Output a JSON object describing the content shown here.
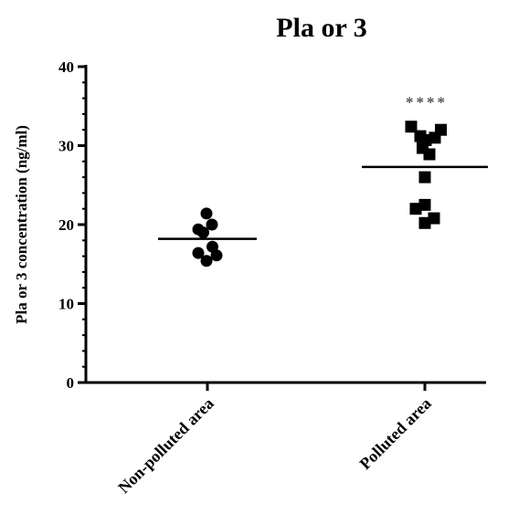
{
  "chart_data": {
    "type": "scatter",
    "title": "Pla or 3",
    "ylabel": "Pla or 3 concentration (ng/ml)",
    "xlabel": "",
    "ylim": [
      0,
      40
    ],
    "yticks": [
      "0",
      "10",
      "20",
      "30",
      "40"
    ],
    "yminor_step": 2,
    "categories": [
      "Non-polluted area",
      "Polluted area"
    ],
    "series": [
      {
        "category": "Non-polluted area",
        "marker": "circle",
        "mean": 18.2,
        "points": [
          {
            "offset": -0.04,
            "y": 21.4
          },
          {
            "offset": -0.4,
            "y": 19.4
          },
          {
            "offset": -0.18,
            "y": 19.0
          },
          {
            "offset": 0.2,
            "y": 20.0
          },
          {
            "offset": -0.4,
            "y": 16.4
          },
          {
            "offset": 0.22,
            "y": 17.2
          },
          {
            "offset": -0.04,
            "y": 15.4
          },
          {
            "offset": 0.4,
            "y": 16.1
          }
        ]
      },
      {
        "category": "Polluted area",
        "marker": "square",
        "mean": 27.3,
        "significance": "****",
        "points": [
          {
            "offset": -0.6,
            "y": 32.4
          },
          {
            "offset": 0.7,
            "y": 32.0
          },
          {
            "offset": -0.2,
            "y": 31.2
          },
          {
            "offset": 0.04,
            "y": 30.7
          },
          {
            "offset": 0.44,
            "y": 31.0
          },
          {
            "offset": -0.1,
            "y": 29.7
          },
          {
            "offset": 0.2,
            "y": 28.9
          },
          {
            "offset": 0.0,
            "y": 26.0
          },
          {
            "offset": 0.0,
            "y": 22.5
          },
          {
            "offset": -0.4,
            "y": 22.0
          },
          {
            "offset": 0.0,
            "y": 20.2
          },
          {
            "offset": 0.4,
            "y": 20.8
          }
        ]
      }
    ]
  }
}
